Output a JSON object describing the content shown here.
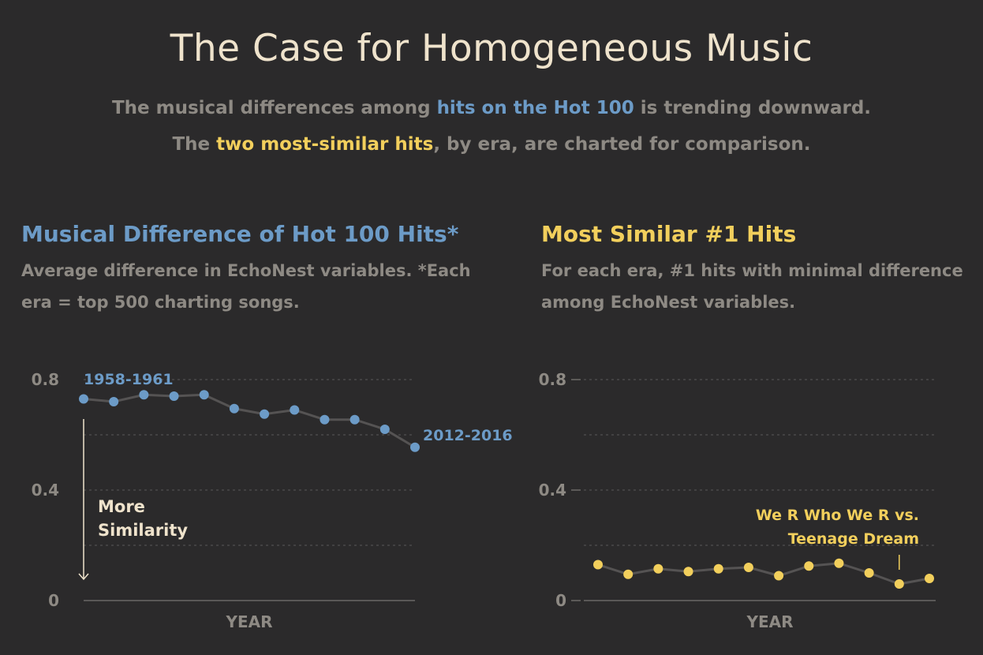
{
  "title": "The Case for Homogeneous Music",
  "subtitle": {
    "line1_pre": "The musical differences among ",
    "line1_hl": "hits on the Hot 100",
    "line1_post": " is trending downward.",
    "line2_pre": "The ",
    "line2_hl": "two most-similar hits",
    "line2_post": ", by era, are charted for comparison."
  },
  "colors": {
    "background": "#2b2a2b",
    "blue": "#6c9bc7",
    "yellow": "#f2cf5c",
    "cream": "#efe3cc",
    "gray": "#8e8a84",
    "line": "#555353"
  },
  "chart_data": [
    {
      "type": "line",
      "title": "Musical Difference of Hot 100 Hits*",
      "subtitle": "Average difference in EchoNest variables. *Each era = top 500 charting songs.",
      "xlabel": "YEAR",
      "ylabel": "",
      "ylim": [
        0,
        0.8
      ],
      "yticks": [
        "0",
        "0.4",
        "0.8"
      ],
      "grid": true,
      "series": [
        {
          "values": [
            0.73,
            0.72,
            0.745,
            0.74,
            0.745,
            0.695,
            0.675,
            0.69,
            0.655,
            0.655,
            0.62,
            0.555
          ]
        }
      ],
      "annotations": {
        "start_label": "1958-1961",
        "end_label": "2012-2016",
        "arrow_label_1": "More",
        "arrow_label_2": "Similarity"
      }
    },
    {
      "type": "line",
      "title": "Most Similar #1 Hits",
      "subtitle": "For each era, #1 hits with minimal difference among EchoNest variables.",
      "xlabel": "YEAR",
      "ylabel": "",
      "ylim": [
        0,
        0.8
      ],
      "yticks": [
        "0",
        "0.4",
        "0.8"
      ],
      "grid": true,
      "series": [
        {
          "values": [
            0.13,
            0.095,
            0.115,
            0.105,
            0.115,
            0.12,
            0.09,
            0.125,
            0.135,
            0.1,
            0.06,
            0.08
          ]
        }
      ],
      "annotations": {
        "callout_1": "We R Who We R vs.",
        "callout_2": "Teenage Dream"
      }
    }
  ]
}
